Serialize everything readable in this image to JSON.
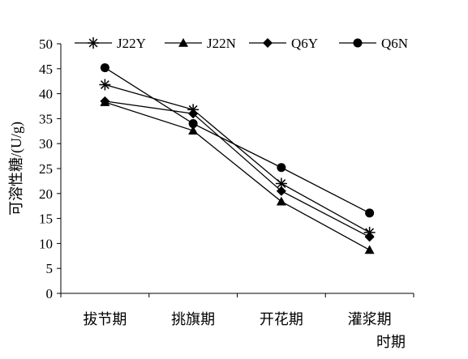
{
  "chart_data": {
    "type": "line",
    "title": "",
    "xlabel": "时期",
    "ylabel": "可溶性糖/(U/g)",
    "categories": [
      "拔节期",
      "挑旗期",
      "开花期",
      "灌浆期"
    ],
    "ylim": [
      0,
      50
    ],
    "yticks": [
      0,
      5,
      10,
      15,
      20,
      25,
      30,
      35,
      40,
      45,
      50
    ],
    "grid": false,
    "legend_position": "top",
    "series": [
      {
        "name": "J22Y",
        "marker": "asterisk",
        "values": [
          41.8,
          36.8,
          22.0,
          12.2
        ]
      },
      {
        "name": "J22N",
        "marker": "triangle",
        "values": [
          38.3,
          32.6,
          18.4,
          8.7
        ]
      },
      {
        "name": "Q6Y",
        "marker": "diamond",
        "values": [
          38.5,
          36.0,
          20.5,
          11.3
        ]
      },
      {
        "name": "Q6N",
        "marker": "circle",
        "values": [
          45.2,
          34.0,
          25.2,
          16.1
        ]
      }
    ],
    "colors": {
      "line": "#000000",
      "axis": "#000000"
    }
  }
}
